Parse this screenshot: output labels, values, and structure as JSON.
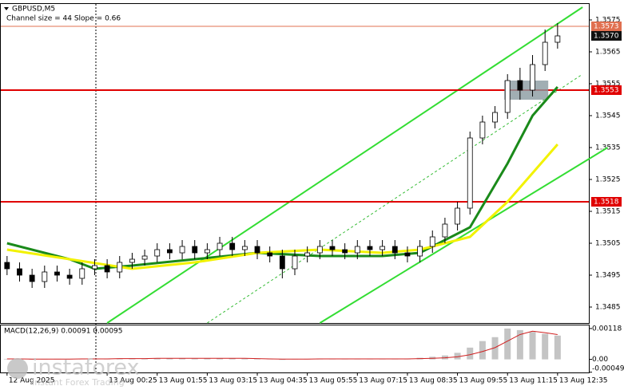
{
  "chart_data": {
    "type": "candlestick",
    "title": "GBPUSD,M5",
    "annotation": "Channel size = 44 Slope = 0.66",
    "open": [
      1.3499,
      1.3497,
      1.3495,
      1.3493,
      1.3496,
      1.3495,
      1.3494,
      1.3497,
      1.3498,
      1.3496,
      1.3499,
      1.35,
      1.3501,
      1.3503,
      1.3502,
      1.3504,
      1.3502,
      1.3503,
      1.3505,
      1.3503,
      1.3504,
      1.3502,
      1.3501,
      1.3497,
      1.3501,
      1.3502,
      1.3504,
      1.3503,
      1.3502,
      1.3504,
      1.3503,
      1.3504,
      1.3502,
      1.3501,
      1.3504,
      1.3507,
      1.3511,
      1.3516,
      1.3538,
      1.3543,
      1.3546,
      1.3556,
      1.3553,
      1.3561,
      1.3568
    ],
    "high": [
      1.3501,
      1.3499,
      1.3497,
      1.3498,
      1.3498,
      1.3497,
      1.3499,
      1.35,
      1.35,
      1.3501,
      1.3502,
      1.3503,
      1.3505,
      1.3505,
      1.3506,
      1.3506,
      1.3505,
      1.3507,
      1.3507,
      1.3506,
      1.3506,
      1.3504,
      1.3503,
      1.3503,
      1.3504,
      1.3506,
      1.3506,
      1.3505,
      1.3506,
      1.3506,
      1.3506,
      1.3506,
      1.3504,
      1.3506,
      1.3509,
      1.3513,
      1.3518,
      1.354,
      1.3545,
      1.3548,
      1.3558,
      1.356,
      1.3564,
      1.3572,
      1.3574
    ],
    "low": [
      1.3495,
      1.3493,
      1.3491,
      1.3491,
      1.3493,
      1.3492,
      1.3492,
      1.3495,
      1.3494,
      1.3494,
      1.3497,
      1.3498,
      1.3499,
      1.35,
      1.35,
      1.35,
      1.35,
      1.3501,
      1.3501,
      1.3501,
      1.35,
      1.3499,
      1.3494,
      1.3495,
      1.3499,
      1.35,
      1.3501,
      1.35,
      1.35,
      1.3501,
      1.3501,
      1.35,
      1.3499,
      1.3499,
      1.3502,
      1.3505,
      1.3509,
      1.3514,
      1.3536,
      1.3541,
      1.3544,
      1.355,
      1.3551,
      1.3559,
      1.3566
    ],
    "close": [
      1.3497,
      1.3495,
      1.3493,
      1.3496,
      1.3495,
      1.3494,
      1.3497,
      1.3498,
      1.3496,
      1.3499,
      1.35,
      1.3501,
      1.3503,
      1.3502,
      1.3504,
      1.3502,
      1.3503,
      1.3505,
      1.3503,
      1.3504,
      1.3502,
      1.3501,
      1.3497,
      1.3501,
      1.3502,
      1.3504,
      1.3503,
      1.3502,
      1.3504,
      1.3503,
      1.3504,
      1.3502,
      1.3501,
      1.3504,
      1.3507,
      1.3511,
      1.3516,
      1.3538,
      1.3543,
      1.3546,
      1.3556,
      1.3553,
      1.3561,
      1.3568,
      1.357
    ],
    "ylim": [
      1.348,
      1.358
    ],
    "yticks": [
      1.3575,
      1.3565,
      1.3555,
      1.3545,
      1.3535,
      1.3525,
      1.3515,
      1.3505,
      1.3495,
      1.3485
    ],
    "xlim": [
      -0.5,
      46.5
    ],
    "xticks": [
      {
        "value": 0,
        "label": "12 Aug 2025"
      },
      {
        "value": 8,
        "label": "13 Aug 00:25"
      },
      {
        "value": 12,
        "label": "13 Aug 01:55"
      },
      {
        "value": 16,
        "label": "13 Aug 03:15"
      },
      {
        "value": 20,
        "label": "13 Aug 04:35"
      },
      {
        "value": 24,
        "label": "13 Aug 05:55"
      },
      {
        "value": 28,
        "label": "13 Aug 07:15"
      },
      {
        "value": 32,
        "label": "13 Aug 08:35"
      },
      {
        "value": 36,
        "label": "13 Aug 09:55"
      },
      {
        "value": 40,
        "label": "13 Aug 11:15"
      },
      {
        "value": 44,
        "label": "13 Aug 12:35"
      }
    ],
    "up_color": "#ffffff",
    "down_color": "#000000",
    "series": [
      {
        "color": "#1a8a1a",
        "x": [
          0,
          5,
          7,
          10,
          15,
          20,
          25,
          30,
          33,
          37,
          40,
          42,
          44
        ],
        "values": [
          1.3505,
          1.35,
          1.3497,
          1.3498,
          1.35,
          1.3502,
          1.3501,
          1.3501,
          1.3502,
          1.351,
          1.353,
          1.3545,
          1.3554
        ]
      },
      {
        "color": "#f2f200",
        "x": [
          0,
          5,
          10,
          15,
          20,
          25,
          30,
          33,
          37,
          40,
          42,
          44
        ],
        "values": [
          1.3503,
          1.35,
          1.3497,
          1.3499,
          1.3502,
          1.3503,
          1.3502,
          1.3503,
          1.3507,
          1.3518,
          1.3527,
          1.3536
        ]
      }
    ],
    "channel": [
      {
        "x": [
          8,
          46
        ],
        "y": [
          1.348,
          1.3579
        ],
        "color": "#33dd33",
        "dashed": false
      },
      {
        "x": [
          25,
          48
        ],
        "y": [
          1.348,
          1.3535
        ],
        "color": "#33dd33",
        "dashed": false
      },
      {
        "x": [
          16,
          46
        ],
        "y": [
          1.348,
          1.3558
        ],
        "color": "#33bb33",
        "dashed": true
      }
    ],
    "zone": {
      "x": [
        40,
        43
      ],
      "y": [
        1.355,
        1.3556
      ],
      "color": "#8a9aa0"
    },
    "levels": [
      {
        "value": 1.3573,
        "label": "1.3573",
        "color": "#e07050"
      },
      {
        "value": 1.357,
        "label": "1.3570",
        "color": "#111111"
      },
      {
        "value": 1.3553,
        "label": "1.3553",
        "color": "#e00000"
      },
      {
        "value": 1.3518,
        "label": "1.3518",
        "color": "#e00000"
      }
    ],
    "macd": {
      "title": "MACD(12,26,9) 0.00091 0.00095",
      "values": [
        2e-05,
        1e-05,
        -1e-05,
        1e-05,
        2e-05,
        1e-05,
        2e-05,
        3e-05,
        2e-05,
        3e-05,
        4e-05,
        3e-05,
        4e-05,
        5e-05,
        4e-05,
        3e-05,
        4e-05,
        5e-05,
        4e-05,
        3e-05,
        2e-05,
        1e-05,
        -2e-05,
        1e-05,
        2e-05,
        3e-05,
        2e-05,
        2e-05,
        3e-05,
        3e-05,
        2e-05,
        2e-05,
        1e-05,
        6e-05,
        0.0001,
        0.00015,
        0.00025,
        0.00045,
        0.0007,
        0.00085,
        0.00118,
        0.00112,
        0.00105,
        0.00098,
        0.00091
      ],
      "signal": [
        2e-05,
        2e-05,
        1e-05,
        1e-05,
        1e-05,
        1e-05,
        2e-05,
        2e-05,
        2e-05,
        3e-05,
        3e-05,
        3e-05,
        4e-05,
        4e-05,
        4e-05,
        4e-05,
        4e-05,
        4e-05,
        4e-05,
        4e-05,
        3e-05,
        2e-05,
        1e-05,
        1e-05,
        1e-05,
        2e-05,
        2e-05,
        2e-05,
        2e-05,
        2e-05,
        2e-05,
        2e-05,
        2e-05,
        3e-05,
        4e-05,
        6e-05,
        0.0001,
        0.00018,
        0.0003,
        0.00045,
        0.0007,
        0.00095,
        0.00108,
        0.00102,
        0.00095
      ],
      "bar_color": "#c4c4c4",
      "signal_color": "#d02020",
      "ylim": [
        -0.0005,
        0.0013
      ],
      "yticks": [
        0.00118,
        {
          "value": 0,
          "label": "0.00"
        },
        -0.00049
      ]
    },
    "watermark": [
      "instaforex",
      "Instant Forex Trading"
    ]
  }
}
